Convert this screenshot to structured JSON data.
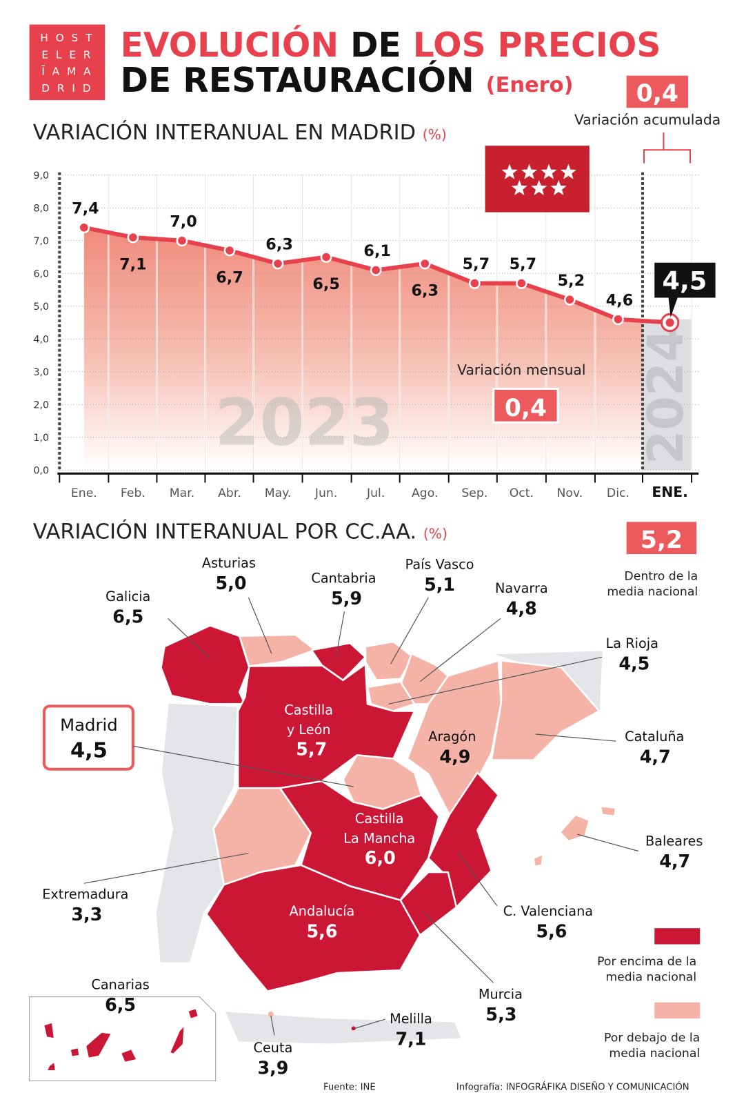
{
  "colors": {
    "accent": "#e8414e",
    "above": "#cc1636",
    "below": "#f5b3a8",
    "line": "#e8414e",
    "grey": "#e3e5e9"
  },
  "logo": {
    "lines": [
      "H O S T",
      "E L E R",
      "Ī A M A",
      "D R I D"
    ]
  },
  "header": {
    "title_red_1": "EVOLUCIÓN",
    "title_black_1": "DE",
    "title_red_2": "LOS PRECIOS",
    "title_black_2": "DE RESTAURACIÓN",
    "title_sub": "(Enero)"
  },
  "madrid_chart": {
    "title": "VARIACIÓN INTERANUAL EN MADRID",
    "unit": "(%)",
    "cumulative_value": "0,4",
    "cumulative_label": "Variación acumulada",
    "monthly_label": "Variación mensual",
    "monthly_value": "0,4",
    "current_value": "4,5",
    "watermark_2023": "2023",
    "watermark_2024": "2024",
    "flag_icon": "comunidad-de-madrid-flag"
  },
  "chart_data": {
    "type": "line",
    "categories": [
      "Ene.",
      "Feb.",
      "Mar.",
      "Abr.",
      "May.",
      "Jun.",
      "Jul.",
      "Ago.",
      "Sep.",
      "Oct.",
      "Nov.",
      "Dic.",
      "ENE."
    ],
    "values": [
      7.4,
      7.1,
      7.0,
      6.7,
      6.3,
      6.5,
      6.1,
      6.3,
      5.7,
      5.7,
      5.2,
      4.6,
      4.5
    ],
    "value_labels": [
      "7,4",
      "7,1",
      "7,0",
      "6,7",
      "6,3",
      "6,5",
      "6,1",
      "6,3",
      "5,7",
      "5,7",
      "5,2",
      "4,6",
      "4,5"
    ],
    "ylim": [
      0,
      9
    ],
    "yticks": [
      "0,0",
      "1,0",
      "2,0",
      "3,0",
      "4,0",
      "5,0",
      "6,0",
      "7,0",
      "8,0",
      "9,0"
    ],
    "grid": true,
    "xlabel": "",
    "ylabel": ""
  },
  "regions_section": {
    "title": "VARIACIÓN INTERANUAL POR CC.AA.",
    "unit": "(%)",
    "national_value": "5,2",
    "national_label_1": "Dentro de la",
    "national_label_2": "media nacional",
    "legend_above_1": "Por encima de la",
    "legend_above_2": "media nacional",
    "legend_below_1": "Por debajo de la",
    "legend_below_2": "media nacional",
    "regions": [
      {
        "name": "Galicia",
        "value": "6,5",
        "category": "above"
      },
      {
        "name": "Asturias",
        "value": "5,0",
        "category": "below"
      },
      {
        "name": "Cantabria",
        "value": "5,9",
        "category": "above"
      },
      {
        "name": "País Vasco",
        "value": "5,1",
        "category": "below"
      },
      {
        "name": "Navarra",
        "value": "4,8",
        "category": "below"
      },
      {
        "name": "La Rioja",
        "value": "4,5",
        "category": "below"
      },
      {
        "name": "Castilla\ny León",
        "value": "5,7",
        "category": "above"
      },
      {
        "name": "Aragón",
        "value": "4,9",
        "category": "below"
      },
      {
        "name": "Cataluña",
        "value": "4,7",
        "category": "below"
      },
      {
        "name": "Madrid",
        "value": "4,5",
        "category": "below"
      },
      {
        "name": "Extremadura",
        "value": "3,3",
        "category": "below"
      },
      {
        "name": "Castilla\nLa Mancha",
        "value": "6,0",
        "category": "above"
      },
      {
        "name": "C. Valenciana",
        "value": "5,6",
        "category": "above"
      },
      {
        "name": "Murcia",
        "value": "5,3",
        "category": "above"
      },
      {
        "name": "Andalucía",
        "value": "5,6",
        "category": "above"
      },
      {
        "name": "Baleares",
        "value": "4,7",
        "category": "below"
      },
      {
        "name": "Canarias",
        "value": "6,5",
        "category": "above"
      },
      {
        "name": "Ceuta",
        "value": "3,9",
        "category": "below"
      },
      {
        "name": "Melilla",
        "value": "7,1",
        "category": "above"
      }
    ]
  },
  "footer": {
    "source": "Fuente: INE",
    "credit_prefix": "Infografía:",
    "credit": "INFOGRÁFIKA DISEÑO Y COMUNICACIÓN"
  }
}
